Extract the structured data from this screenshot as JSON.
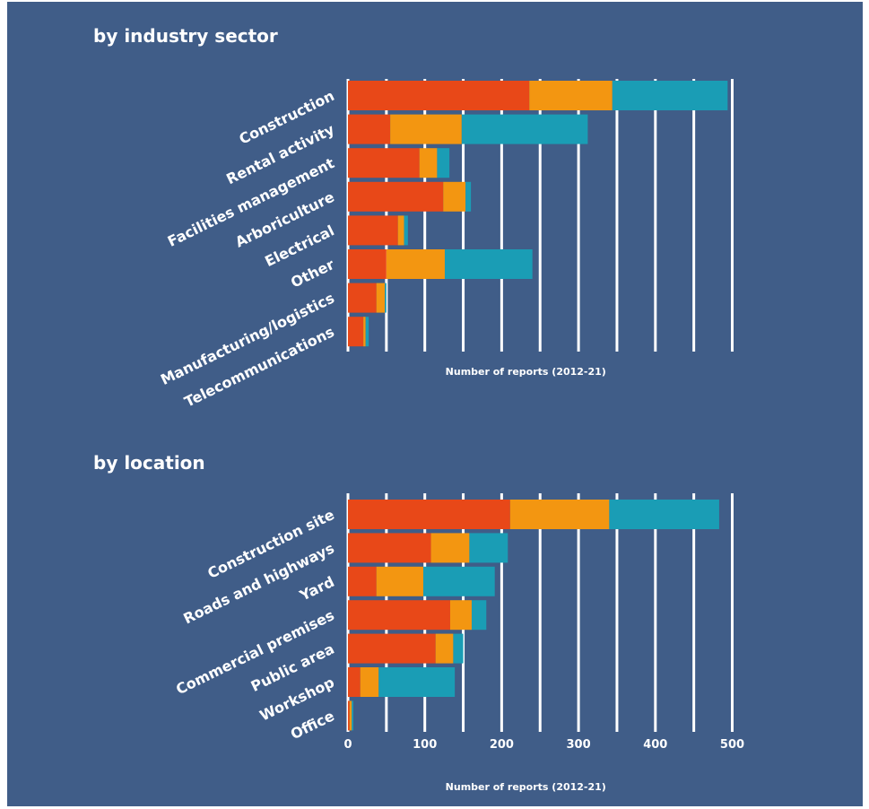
{
  "chart_data": [
    {
      "type": "bar",
      "orientation": "horizontal",
      "stacked": true,
      "title": "by industry sector",
      "xlabel": "Number of reports (2012-21)",
      "xlim": [
        0,
        500
      ],
      "grid": true,
      "categories": [
        "Construction",
        "Rental activity",
        "Facilities management",
        "Arboriculture",
        "Electrical",
        "Other",
        "Manufacturing/logistics",
        "Telecommunications"
      ],
      "series": [
        {
          "color": "#e84818",
          "values": [
            236,
            55,
            93,
            124,
            65,
            50,
            37,
            20
          ]
        },
        {
          "color": "#f39611",
          "values": [
            108,
            93,
            23,
            29,
            8,
            76,
            11,
            3
          ]
        },
        {
          "color": "#1a9db5",
          "values": [
            150,
            164,
            16,
            7,
            5,
            114,
            2,
            4
          ]
        }
      ]
    },
    {
      "type": "bar",
      "orientation": "horizontal",
      "stacked": true,
      "title": "by location",
      "xlabel": "Number of reports (2012-21)",
      "xlim": [
        0,
        500
      ],
      "xticks": [
        "0",
        "100",
        "200",
        "300",
        "400",
        "500"
      ],
      "grid": true,
      "categories": [
        "Construction site",
        "Roads and highways",
        "Yard",
        "Commercial premises",
        "Public area",
        "Workshop",
        "Office"
      ],
      "series": [
        {
          "color": "#e84818",
          "values": [
            211,
            108,
            37,
            133,
            114,
            16,
            2
          ]
        },
        {
          "color": "#f39611",
          "values": [
            129,
            50,
            61,
            28,
            23,
            24,
            3
          ]
        },
        {
          "color": "#1a9db5",
          "values": [
            143,
            50,
            93,
            19,
            13,
            99,
            2
          ]
        }
      ]
    }
  ]
}
